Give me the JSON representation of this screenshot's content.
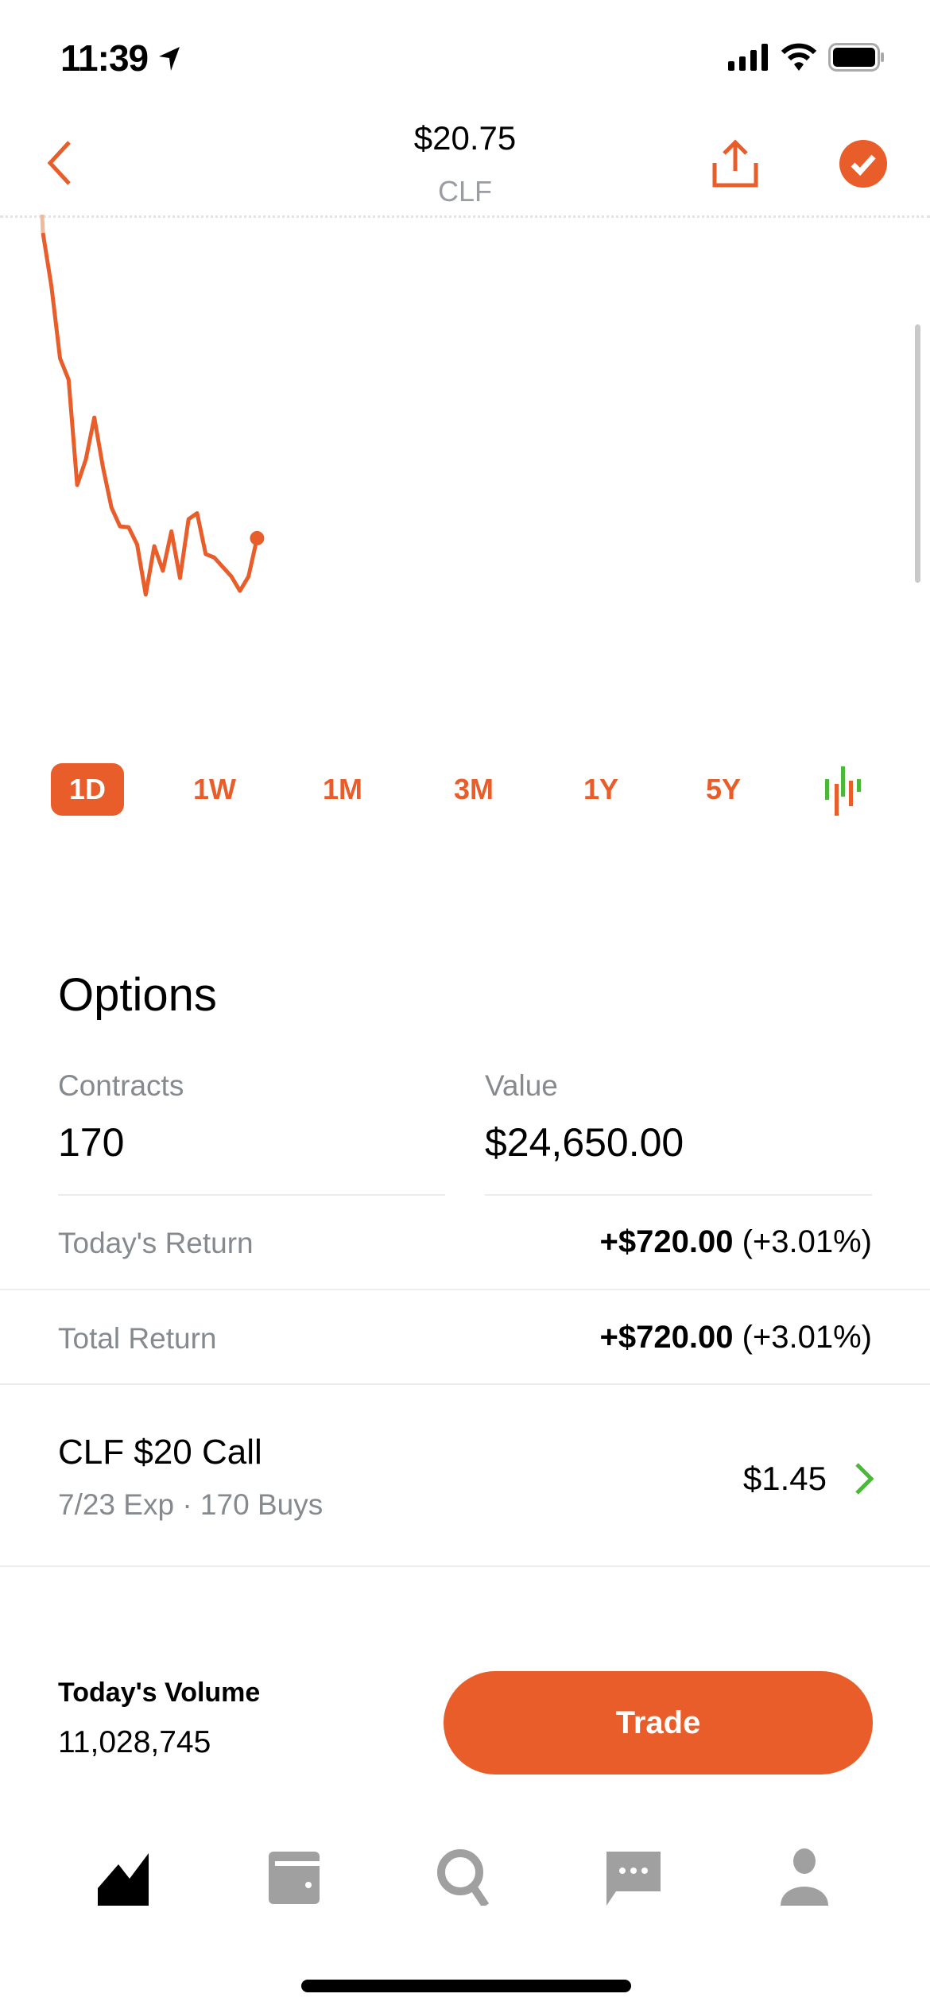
{
  "status_bar": {
    "time": "11:39"
  },
  "header": {
    "price": "$20.75",
    "symbol": "CLF"
  },
  "colors": {
    "accent": "#e85d2a",
    "positive": "#4cb83a",
    "muted": "#858a8f",
    "icon_inactive": "#a0a0a0"
  },
  "chart_data": {
    "type": "line",
    "title": "",
    "x": [
      0,
      1,
      2,
      3,
      4,
      5,
      6,
      7,
      8,
      9,
      10,
      11,
      12,
      13,
      14,
      15,
      16,
      17,
      18,
      19,
      20,
      21,
      22,
      23,
      24,
      25
    ],
    "values": [
      95.4,
      81.2,
      62.3,
      56.7,
      28.9,
      35.6,
      46.7,
      33.7,
      23.0,
      18.0,
      17.8,
      13.2,
      0,
      12.8,
      6.3,
      16.7,
      4.4,
      19.9,
      21.5,
      10.7,
      9.8,
      7.3,
      4.8,
      1.0,
      4.8,
      14.9
    ],
    "ylim": [
      0,
      100
    ],
    "xlim": [
      0,
      103
    ],
    "grid": false,
    "reference_line": "dotted, top",
    "color": "#e85d2a"
  },
  "ranges": [
    {
      "label": "1D",
      "active": true
    },
    {
      "label": "1W"
    },
    {
      "label": "1M"
    },
    {
      "label": "3M"
    },
    {
      "label": "1Y"
    },
    {
      "label": "5Y"
    }
  ],
  "options": {
    "title": "Options",
    "contracts_label": "Contracts",
    "contracts": "170",
    "value_label": "Value",
    "value": "$24,650.00",
    "todays_return_label": "Today's Return",
    "todays_return": "+$720.00",
    "todays_return_pct": "(+3.01%)",
    "total_return_label": "Total Return",
    "total_return": "+$720.00",
    "total_return_pct": "(+3.01%)"
  },
  "position": {
    "title": "CLF $20 Call",
    "subtitle": "7/23 Exp · 170 Buys",
    "price": "$1.45"
  },
  "volume": {
    "label": "Today's Volume",
    "value": "11,028,745"
  },
  "trade_label": "Trade",
  "nav": [
    "chart-icon",
    "wallet-icon",
    "search-icon",
    "chat-icon",
    "profile-icon"
  ]
}
